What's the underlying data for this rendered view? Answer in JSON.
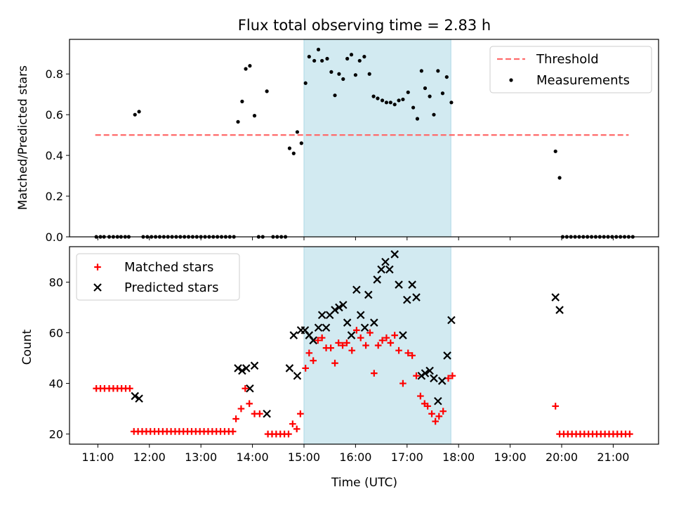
{
  "title": "Flux total observing time = 2.83 h",
  "colors": {
    "threshold": "#ff6b6b",
    "shade": "#add8e6",
    "matched": "#ff0000",
    "predicted": "#000000",
    "measurement": "#000000"
  },
  "chart_data": [
    {
      "type": "scatter",
      "panel": "top",
      "ylabel": "Matched/Predicted stars",
      "ylim": [
        0,
        0.97
      ],
      "yticks": [
        0.0,
        0.2,
        0.4,
        0.6,
        0.8
      ],
      "ytick_labels": [
        "0.0",
        "0.2",
        "0.4",
        "0.6",
        "0.8"
      ],
      "xlim": [
        10.45,
        21.88
      ],
      "xticks": [
        11,
        12,
        13,
        14,
        15,
        16,
        17,
        18,
        19,
        20,
        21
      ],
      "grid": false,
      "legend": {
        "position": "top-right",
        "entries": [
          "Threshold",
          "Measurements"
        ]
      },
      "shaded_interval": [
        15.0,
        17.85
      ],
      "threshold": {
        "name": "Threshold",
        "y": 0.5,
        "x_range": [
          10.95,
          21.3
        ]
      },
      "series": [
        {
          "name": "Measurements",
          "points": [
            [
              10.97,
              0
            ],
            [
              11.05,
              0
            ],
            [
              11.12,
              0
            ],
            [
              11.22,
              0
            ],
            [
              11.3,
              0
            ],
            [
              11.38,
              0
            ],
            [
              11.45,
              0
            ],
            [
              11.53,
              0
            ],
            [
              11.6,
              0
            ],
            [
              11.72,
              0.6
            ],
            [
              11.8,
              0.615
            ],
            [
              11.88,
              0
            ],
            [
              11.96,
              0
            ],
            [
              12.04,
              0
            ],
            [
              12.12,
              0
            ],
            [
              12.2,
              0
            ],
            [
              12.28,
              0
            ],
            [
              12.36,
              0
            ],
            [
              12.44,
              0
            ],
            [
              12.52,
              0
            ],
            [
              12.6,
              0
            ],
            [
              12.68,
              0
            ],
            [
              12.76,
              0
            ],
            [
              12.84,
              0
            ],
            [
              12.92,
              0
            ],
            [
              13.0,
              0
            ],
            [
              13.08,
              0
            ],
            [
              13.16,
              0
            ],
            [
              13.24,
              0
            ],
            [
              13.32,
              0
            ],
            [
              13.4,
              0
            ],
            [
              13.48,
              0
            ],
            [
              13.56,
              0
            ],
            [
              13.64,
              0
            ],
            [
              13.72,
              0.565
            ],
            [
              13.8,
              0.665
            ],
            [
              13.87,
              0.825
            ],
            [
              13.95,
              0.84
            ],
            [
              14.04,
              0.595
            ],
            [
              14.12,
              0
            ],
            [
              14.2,
              0
            ],
            [
              14.28,
              0.715
            ],
            [
              14.4,
              0
            ],
            [
              14.48,
              0
            ],
            [
              14.56,
              0
            ],
            [
              14.64,
              0
            ],
            [
              14.72,
              0.435
            ],
            [
              14.8,
              0.41
            ],
            [
              14.87,
              0.515
            ],
            [
              14.95,
              0.46
            ],
            [
              15.03,
              0.755
            ],
            [
              15.1,
              0.885
            ],
            [
              15.2,
              0.865
            ],
            [
              15.28,
              0.92
            ],
            [
              15.35,
              0.865
            ],
            [
              15.45,
              0.875
            ],
            [
              15.53,
              0.81
            ],
            [
              15.6,
              0.695
            ],
            [
              15.68,
              0.8
            ],
            [
              15.76,
              0.775
            ],
            [
              15.84,
              0.875
            ],
            [
              15.92,
              0.895
            ],
            [
              16.0,
              0.795
            ],
            [
              16.08,
              0.865
            ],
            [
              16.17,
              0.885
            ],
            [
              16.27,
              0.8
            ],
            [
              16.35,
              0.69
            ],
            [
              16.43,
              0.68
            ],
            [
              16.52,
              0.67
            ],
            [
              16.6,
              0.66
            ],
            [
              16.68,
              0.66
            ],
            [
              16.76,
              0.65
            ],
            [
              16.84,
              0.67
            ],
            [
              16.92,
              0.675
            ],
            [
              17.02,
              0.71
            ],
            [
              17.12,
              0.635
            ],
            [
              17.2,
              0.58
            ],
            [
              17.28,
              0.815
            ],
            [
              17.35,
              0.73
            ],
            [
              17.44,
              0.69
            ],
            [
              17.52,
              0.6
            ],
            [
              17.6,
              0.815
            ],
            [
              17.69,
              0.705
            ],
            [
              17.77,
              0.785
            ],
            [
              17.86,
              0.66
            ],
            [
              19.88,
              0.42
            ],
            [
              19.96,
              0.29
            ],
            [
              20.02,
              0
            ],
            [
              20.1,
              0
            ],
            [
              20.18,
              0
            ],
            [
              20.26,
              0
            ],
            [
              20.34,
              0
            ],
            [
              20.42,
              0
            ],
            [
              20.5,
              0
            ],
            [
              20.58,
              0
            ],
            [
              20.66,
              0
            ],
            [
              20.74,
              0
            ],
            [
              20.82,
              0
            ],
            [
              20.9,
              0
            ],
            [
              20.98,
              0
            ],
            [
              21.06,
              0
            ],
            [
              21.14,
              0
            ],
            [
              21.22,
              0
            ],
            [
              21.3,
              0
            ],
            [
              21.38,
              0
            ]
          ]
        }
      ]
    },
    {
      "type": "scatter",
      "panel": "bottom",
      "xlabel": "Time (UTC)",
      "ylabel": "Count",
      "ylim": [
        16,
        94
      ],
      "yticks": [
        20,
        40,
        60,
        80
      ],
      "ytick_labels": [
        "20",
        "40",
        "60",
        "80"
      ],
      "xlim": [
        10.45,
        21.88
      ],
      "xticks": [
        11,
        12,
        13,
        14,
        15,
        16,
        17,
        18,
        19,
        20,
        21
      ],
      "xtick_labels": [
        "11:00",
        "12:00",
        "13:00",
        "14:00",
        "15:00",
        "16:00",
        "17:00",
        "18:00",
        "19:00",
        "20:00",
        "21:00"
      ],
      "grid": false,
      "legend": {
        "position": "top-left",
        "entries": [
          "Matched stars",
          "Predicted stars"
        ]
      },
      "shaded_interval": [
        15.0,
        17.85
      ],
      "series": [
        {
          "name": "Matched stars",
          "points": [
            [
              10.97,
              38
            ],
            [
              11.05,
              38
            ],
            [
              11.13,
              38
            ],
            [
              11.22,
              38
            ],
            [
              11.3,
              38
            ],
            [
              11.38,
              38
            ],
            [
              11.46,
              38
            ],
            [
              11.54,
              38
            ],
            [
              11.62,
              38
            ],
            [
              11.7,
              21
            ],
            [
              11.78,
              21
            ],
            [
              11.86,
              21
            ],
            [
              11.94,
              21
            ],
            [
              12.02,
              21
            ],
            [
              12.1,
              21
            ],
            [
              12.18,
              21
            ],
            [
              12.26,
              21
            ],
            [
              12.34,
              21
            ],
            [
              12.42,
              21
            ],
            [
              12.5,
              21
            ],
            [
              12.58,
              21
            ],
            [
              12.66,
              21
            ],
            [
              12.74,
              21
            ],
            [
              12.82,
              21
            ],
            [
              12.9,
              21
            ],
            [
              12.98,
              21
            ],
            [
              13.06,
              21
            ],
            [
              13.14,
              21
            ],
            [
              13.22,
              21
            ],
            [
              13.3,
              21
            ],
            [
              13.38,
              21
            ],
            [
              13.46,
              21
            ],
            [
              13.54,
              21
            ],
            [
              13.62,
              21
            ],
            [
              13.68,
              26
            ],
            [
              13.78,
              30
            ],
            [
              13.86,
              38
            ],
            [
              13.94,
              32
            ],
            [
              14.04,
              28
            ],
            [
              14.14,
              28
            ],
            [
              14.3,
              20
            ],
            [
              14.38,
              20
            ],
            [
              14.46,
              20
            ],
            [
              14.54,
              20
            ],
            [
              14.62,
              20
            ],
            [
              14.7,
              20
            ],
            [
              14.78,
              24
            ],
            [
              14.86,
              22
            ],
            [
              14.93,
              28
            ],
            [
              15.03,
              46
            ],
            [
              15.1,
              52
            ],
            [
              15.18,
              49
            ],
            [
              15.27,
              57
            ],
            [
              15.35,
              58
            ],
            [
              15.43,
              54
            ],
            [
              15.52,
              54
            ],
            [
              15.6,
              48
            ],
            [
              15.67,
              56
            ],
            [
              15.75,
              55
            ],
            [
              15.83,
              56
            ],
            [
              15.93,
              53
            ],
            [
              16.02,
              61
            ],
            [
              16.1,
              58
            ],
            [
              16.2,
              55
            ],
            [
              16.28,
              60
            ],
            [
              16.36,
              44
            ],
            [
              16.44,
              55
            ],
            [
              16.52,
              57
            ],
            [
              16.6,
              58
            ],
            [
              16.68,
              56
            ],
            [
              16.76,
              59
            ],
            [
              16.84,
              53
            ],
            [
              16.92,
              40
            ],
            [
              17.02,
              52
            ],
            [
              17.1,
              51
            ],
            [
              17.18,
              43
            ],
            [
              17.26,
              35
            ],
            [
              17.34,
              32
            ],
            [
              17.4,
              31
            ],
            [
              17.48,
              28
            ],
            [
              17.55,
              25
            ],
            [
              17.62,
              27
            ],
            [
              17.7,
              29
            ],
            [
              17.8,
              42
            ],
            [
              17.88,
              43
            ],
            [
              19.88,
              31
            ],
            [
              19.96,
              20
            ],
            [
              20.04,
              20
            ],
            [
              20.12,
              20
            ],
            [
              20.2,
              20
            ],
            [
              20.28,
              20
            ],
            [
              20.36,
              20
            ],
            [
              20.44,
              20
            ],
            [
              20.52,
              20
            ],
            [
              20.6,
              20
            ],
            [
              20.68,
              20
            ],
            [
              20.76,
              20
            ],
            [
              20.84,
              20
            ],
            [
              20.92,
              20
            ],
            [
              21.0,
              20
            ],
            [
              21.08,
              20
            ],
            [
              21.16,
              20
            ],
            [
              21.24,
              20
            ],
            [
              21.32,
              20
            ]
          ]
        },
        {
          "name": "Predicted stars",
          "points": [
            [
              11.72,
              35
            ],
            [
              11.8,
              34
            ],
            [
              13.72,
              46
            ],
            [
              13.8,
              45
            ],
            [
              13.88,
              46
            ],
            [
              13.95,
              38
            ],
            [
              14.04,
              47
            ],
            [
              14.28,
              28
            ],
            [
              14.72,
              46
            ],
            [
              14.8,
              59
            ],
            [
              14.87,
              43
            ],
            [
              14.94,
              61
            ],
            [
              15.02,
              61
            ],
            [
              15.1,
              59
            ],
            [
              15.18,
              57
            ],
            [
              15.28,
              62
            ],
            [
              15.35,
              67
            ],
            [
              15.43,
              62
            ],
            [
              15.5,
              67
            ],
            [
              15.6,
              69
            ],
            [
              15.68,
              70
            ],
            [
              15.76,
              71
            ],
            [
              15.84,
              64
            ],
            [
              15.92,
              59
            ],
            [
              16.02,
              77
            ],
            [
              16.1,
              67
            ],
            [
              16.18,
              62
            ],
            [
              16.25,
              75
            ],
            [
              16.36,
              64
            ],
            [
              16.42,
              81
            ],
            [
              16.5,
              85
            ],
            [
              16.58,
              88
            ],
            [
              16.66,
              85
            ],
            [
              16.76,
              91
            ],
            [
              16.84,
              79
            ],
            [
              16.92,
              59
            ],
            [
              17.0,
              73
            ],
            [
              17.1,
              79
            ],
            [
              17.18,
              74
            ],
            [
              17.28,
              43
            ],
            [
              17.35,
              44
            ],
            [
              17.44,
              45
            ],
            [
              17.52,
              42
            ],
            [
              17.6,
              33
            ],
            [
              17.68,
              41
            ],
            [
              17.78,
              51
            ],
            [
              17.86,
              65
            ],
            [
              19.88,
              74
            ],
            [
              19.96,
              69
            ]
          ]
        }
      ]
    }
  ]
}
